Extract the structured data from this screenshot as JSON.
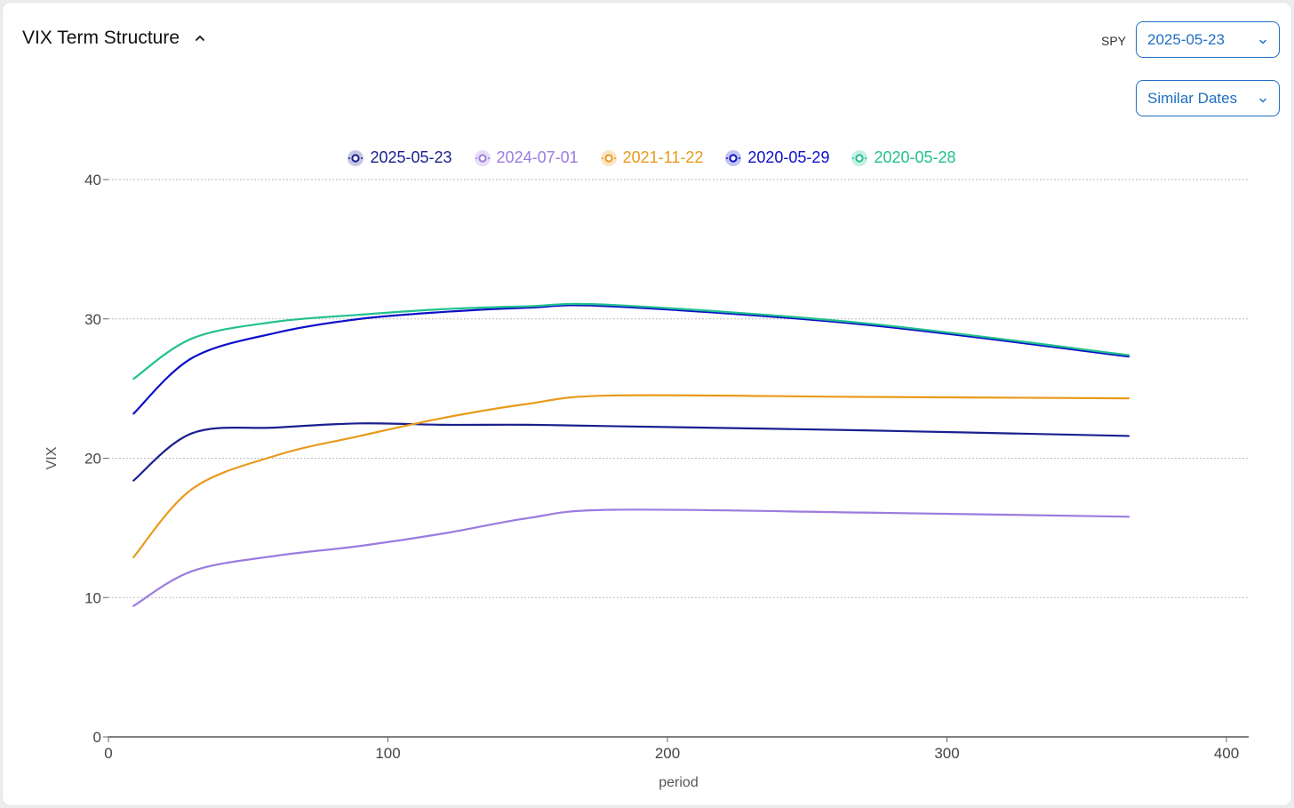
{
  "header": {
    "title": "VIX Term Structure",
    "ticker_label": "SPY",
    "date_value": "2025-05-23",
    "mode_value": "Similar Dates"
  },
  "icons": {
    "collapse": "chevron-up-icon",
    "dropdown": "chevron-down-icon"
  },
  "colors": {
    "accent": "#1f6fc2",
    "grid": "#bdbdbd",
    "axis": "#333333"
  },
  "chart_data": {
    "type": "line",
    "xlabel": "period",
    "ylabel": "VIX",
    "xlim": [
      0,
      400
    ],
    "ylim": [
      0,
      40
    ],
    "xticks": [
      0,
      100,
      200,
      300,
      400
    ],
    "yticks": [
      0,
      10,
      20,
      30,
      40
    ],
    "grid": "horizontal dotted",
    "legend_position": "top-center",
    "series": [
      {
        "name": "2025-05-23",
        "color": "#1a1f8f",
        "x": [
          9,
          30,
          60,
          90,
          120,
          150,
          180,
          270,
          365
        ],
        "y": [
          18.4,
          21.8,
          22.2,
          22.5,
          22.4,
          22.4,
          22.3,
          22.0,
          21.6
        ]
      },
      {
        "name": "2024-07-01",
        "color": "#9b7be0",
        "x": [
          9,
          30,
          60,
          90,
          120,
          150,
          180,
          270,
          365
        ],
        "y": [
          9.4,
          11.9,
          13.0,
          13.7,
          14.6,
          15.7,
          16.3,
          16.1,
          15.8
        ]
      },
      {
        "name": "2021-11-22",
        "color": "#e89a1c",
        "x": [
          9,
          30,
          60,
          90,
          120,
          150,
          180,
          270,
          365
        ],
        "y": [
          12.9,
          17.8,
          20.2,
          21.6,
          22.9,
          23.9,
          24.5,
          24.4,
          24.3
        ]
      },
      {
        "name": "2020-05-29",
        "color": "#0d10c8",
        "x": [
          9,
          30,
          60,
          90,
          120,
          150,
          180,
          270,
          365
        ],
        "y": [
          23.2,
          27.2,
          29.0,
          30.0,
          30.5,
          30.8,
          30.9,
          29.6,
          27.3
        ]
      },
      {
        "name": "2020-05-28",
        "color": "#21c08f",
        "x": [
          9,
          30,
          60,
          90,
          120,
          150,
          180,
          270,
          365
        ],
        "y": [
          25.7,
          28.6,
          29.8,
          30.3,
          30.7,
          30.9,
          31.0,
          29.7,
          27.4
        ]
      }
    ]
  }
}
